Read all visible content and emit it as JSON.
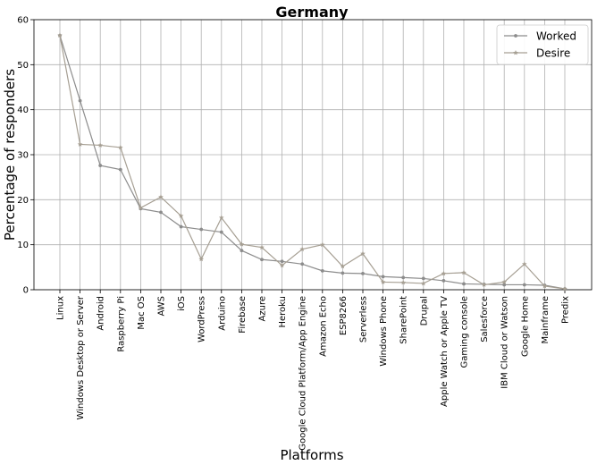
{
  "chart_data": {
    "type": "line",
    "title": "Germany",
    "xlabel": "Platforms",
    "ylabel": "Percentage of responders",
    "ylim": [
      0,
      60
    ],
    "yticks": [
      0,
      10,
      20,
      30,
      40,
      50,
      60
    ],
    "grid": true,
    "legend_position": "top-right",
    "categories": [
      "Linux",
      "Windows Desktop or Server",
      "Android",
      "Raspberry Pi",
      "Mac OS",
      "AWS",
      "iOS",
      "WordPress",
      "Arduino",
      "Firebase",
      "Azure",
      "Heroku",
      "Google Cloud Platform/App Engine",
      "Amazon Echo",
      "ESP8266",
      "Serverless",
      "Windows Phone",
      "SharePoint",
      "Drupal",
      "Apple Watch or Apple TV",
      "Gaming console",
      "Salesforce",
      "IBM Cloud or Watson",
      "Google Home",
      "Mainframe",
      "Predix"
    ],
    "series": [
      {
        "name": "Worked",
        "color": "#8c8c8c",
        "marker": "circle",
        "values": [
          56.5,
          42.0,
          27.6,
          26.7,
          18.0,
          17.2,
          14.0,
          13.4,
          12.8,
          8.7,
          6.7,
          6.3,
          5.7,
          4.2,
          3.7,
          3.6,
          2.9,
          2.7,
          2.5,
          2.0,
          1.3,
          1.2,
          1.1,
          1.1,
          1.0,
          0.2
        ]
      },
      {
        "name": "Desire",
        "color": "#a69f93",
        "marker": "star",
        "values": [
          56.5,
          32.3,
          32.1,
          31.6,
          18.2,
          20.6,
          16.4,
          6.8,
          16.0,
          10.1,
          9.4,
          5.4,
          9.0,
          10.0,
          5.2,
          8.0,
          1.7,
          1.6,
          1.4,
          3.6,
          3.8,
          1.1,
          1.7,
          5.7,
          0.8,
          0.2
        ]
      }
    ]
  }
}
